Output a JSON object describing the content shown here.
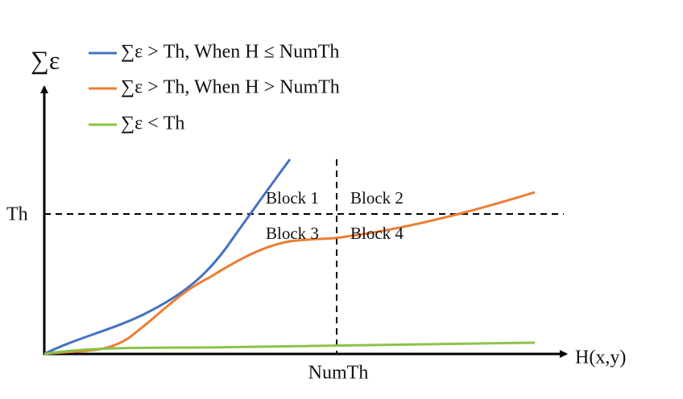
{
  "axes": {
    "y_label": "∑ε",
    "x_label": "H(x,y)",
    "threshold_label": "Th",
    "numth_label": "NumTh"
  },
  "legend": [
    "∑ε > Th, When H ≤ NumTh",
    "∑ε > Th, When H > NumTh",
    "∑ε < Th"
  ],
  "blocks": [
    "Block 1",
    "Block 2",
    "Block 3",
    "Block 4"
  ]
}
